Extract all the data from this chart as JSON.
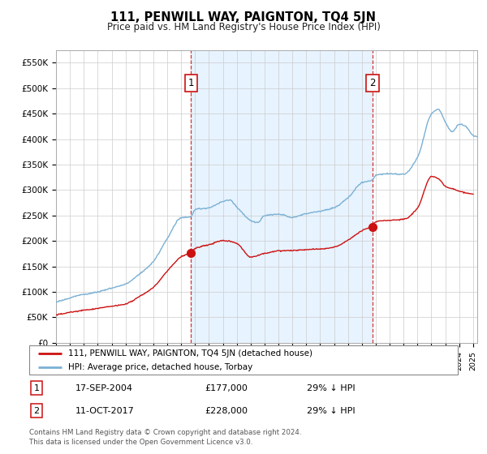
{
  "title": "111, PENWILL WAY, PAIGNTON, TQ4 5JN",
  "subtitle": "Price paid vs. HM Land Registry's House Price Index (HPI)",
  "ylabel_ticks": [
    "£0",
    "£50K",
    "£100K",
    "£150K",
    "£200K",
    "£250K",
    "£300K",
    "£350K",
    "£400K",
    "£450K",
    "£500K",
    "£550K"
  ],
  "ytick_values": [
    0,
    50000,
    100000,
    150000,
    200000,
    250000,
    300000,
    350000,
    400000,
    450000,
    500000,
    550000
  ],
  "ylim": [
    0,
    575000
  ],
  "hpi_color": "#7ab0d4",
  "price_color": "#cc1111",
  "shade_color": "#ddeeff",
  "sale1_date_x": 2004.72,
  "sale1_price": 177000,
  "sale1_label": "1",
  "sale2_date_x": 2017.78,
  "sale2_price": 228000,
  "sale2_label": "2",
  "legend_entries": [
    {
      "label": "111, PENWILL WAY, PAIGNTON, TQ4 5JN (detached house)",
      "color": "#cc1111"
    },
    {
      "label": "HPI: Average price, detached house, Torbay",
      "color": "#7ab0d4"
    }
  ],
  "table_rows": [
    {
      "num": "1",
      "date": "17-SEP-2004",
      "price": "£177,000",
      "pct": "29% ↓ HPI"
    },
    {
      "num": "2",
      "date": "11-OCT-2017",
      "price": "£228,000",
      "pct": "29% ↓ HPI"
    }
  ],
  "footnote": "Contains HM Land Registry data © Crown copyright and database right 2024.\nThis data is licensed under the Open Government Licence v3.0.",
  "background_color": "#ffffff",
  "grid_color": "#cccccc",
  "xlim_start": 1995,
  "xlim_end": 2025.3
}
